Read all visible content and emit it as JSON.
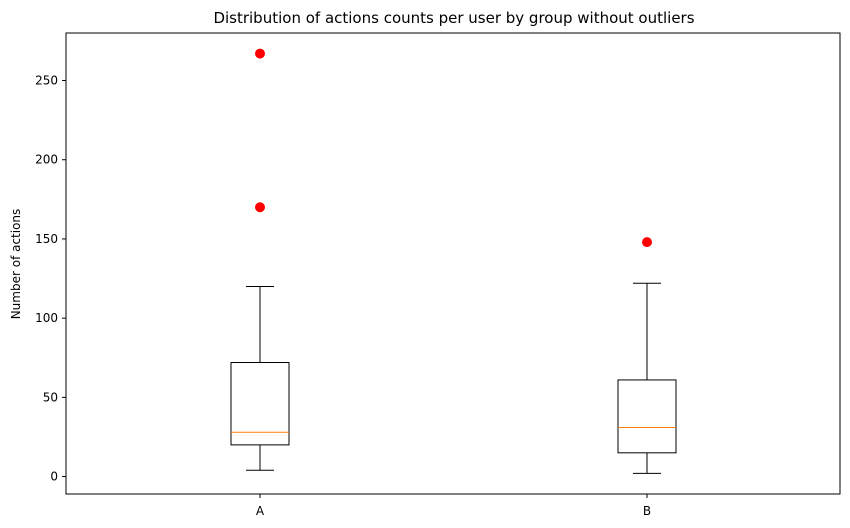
{
  "chart_data": {
    "type": "box",
    "title": "Distribution of actions counts per user by group without outliers",
    "xlabel": "",
    "ylabel": "Number of actions",
    "ylim": [
      -11,
      280
    ],
    "yticks": [
      0,
      50,
      100,
      150,
      200,
      250
    ],
    "ytick_labels": [
      "0",
      "50",
      "100",
      "150",
      "200",
      "250"
    ],
    "grid": false,
    "categories": [
      "A",
      "B"
    ],
    "boxes": [
      {
        "category": "A",
        "whisker_low": 4,
        "q1": 20,
        "median": 28,
        "q3": 72,
        "whisker_high": 120,
        "fliers": [
          170,
          267
        ]
      },
      {
        "category": "B",
        "whisker_low": 2,
        "q1": 15,
        "median": 31,
        "q3": 61,
        "whisker_high": 122,
        "fliers": [
          148
        ]
      }
    ],
    "colors": {
      "box": "#000000",
      "median": "#ff7f0e",
      "flier": "#ff0000"
    }
  }
}
